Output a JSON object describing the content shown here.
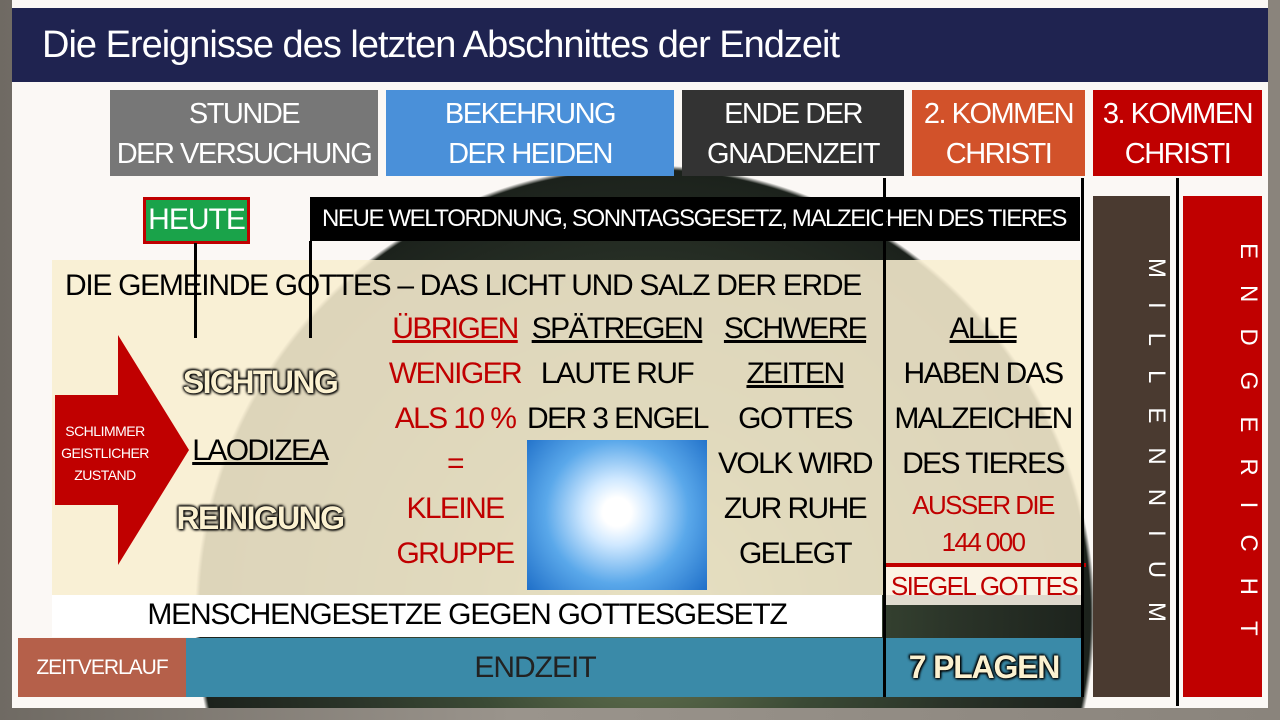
{
  "title": "Die Ereignisse des letzten Abschnittes der Endzeit",
  "headers": [
    {
      "line1": "STUNDE",
      "line2": "DER VERSUCHUNG",
      "color": "#777777"
    },
    {
      "line1": "BEKEHRUNG",
      "line2": "DER HEIDEN",
      "color": "#4a90d9"
    },
    {
      "line1": "ENDE DER",
      "line2": "GNADENZEIT",
      "color": "#333333"
    },
    {
      "line1": "2. KOMMEN",
      "line2": "CHRISTI",
      "color": "#d2522a"
    },
    {
      "line1": "3. KOMMEN",
      "line2": "CHRISTI",
      "color": "#c00000"
    }
  ],
  "heute": "HEUTE",
  "banner": "NEUE WELTORDNUNG, SONNTAGSGESETZ, MALZEICHEN DES TIERES",
  "church_title": "DIE GEMEINDE GOTTES – DAS LICHT UND SALZ DER ERDE",
  "arrow": {
    "l1": "SCHLIMMER",
    "l2": "GEISTLICHER",
    "l3": "ZUSTAND"
  },
  "state": {
    "sichtung": "SICHTUNG",
    "laodizea": "LAODIZEA",
    "reinigung": "REINIGUNG"
  },
  "remnant": {
    "title": "ÜBRIGEN",
    "l1": "WENIGER",
    "l2": "ALS 10 %",
    "l3": "=",
    "l4": "KLEINE",
    "l5": "GRUPPE"
  },
  "latter_rain": {
    "title": "SPÄTREGEN",
    "l1": "LAUTE RUF",
    "l2": "DER 3 ENGEL"
  },
  "hard_times": {
    "t1": "SCHWERE",
    "t2": "ZEITEN",
    "l1": "GOTTES",
    "l2": "VOLK WIRD",
    "l3": "ZUR RUHE",
    "l4": "GELEGT"
  },
  "mark": {
    "title": "ALLE",
    "l1": "HABEN DAS",
    "l2": "MALZEICHEN",
    "l3": "DES TIERES",
    "r1": "AUSSER DIE",
    "r2": "144 000",
    "r3": "SIEGEL GOTTES"
  },
  "laws": "MENSCHENGESETZE GEGEN GOTTESGESETZ",
  "timeline": {
    "label": "ZEITVERLAUF",
    "endzeit": "ENDZEIT",
    "plagen": "7 PLAGEN"
  },
  "millennium": "MILLENNIUM",
  "endgericht": "ENDGERICHT"
}
